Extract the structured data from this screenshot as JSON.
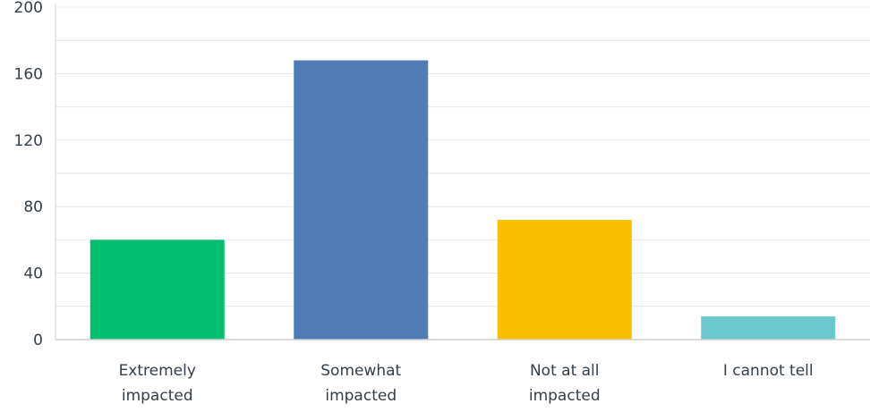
{
  "chart_data": {
    "type": "bar",
    "title": "",
    "xlabel": "",
    "ylabel": "",
    "categories": [
      [
        "Extremely",
        "impacted"
      ],
      [
        "Somewhat",
        "impacted"
      ],
      [
        "Not at all",
        "impacted"
      ],
      [
        "I cannot tell"
      ]
    ],
    "values": [
      60,
      168,
      72,
      14
    ],
    "colors": [
      "#00bf6f",
      "#507cb6",
      "#f9be00",
      "#6bc8cd"
    ],
    "ylim": [
      0,
      200
    ],
    "yticks": [
      "0",
      "40",
      "80",
      "120",
      "160",
      "200"
    ],
    "ytick_values": [
      0,
      40,
      80,
      120,
      160,
      200
    ],
    "minor_gridlines": true,
    "grid": true,
    "legend": "none"
  }
}
